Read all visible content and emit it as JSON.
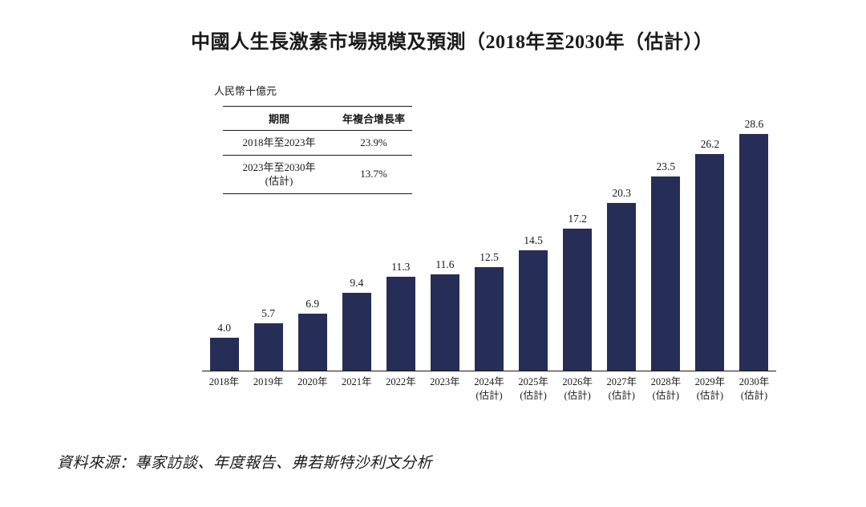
{
  "title": "中國人生長激素市場規模及預測（2018年至2030年（估計））",
  "unit_label": "人民幣十億元",
  "cagr_table": {
    "headers": [
      "期間",
      "年複合增長率"
    ],
    "rows": [
      {
        "period_lines": [
          "2018年至2023年",
          ""
        ],
        "cagr": "23.9%"
      },
      {
        "period_lines": [
          "2023年至2030年",
          "(估計)"
        ],
        "cagr": "13.7%"
      }
    ]
  },
  "source": "資料來源：專家訪談、年度報告、弗若斯特沙利文分析",
  "chart_data": {
    "type": "bar",
    "title": "中國人生長激素市場規模及預測（2018年至2030年（估計））",
    "ylabel": "人民幣十億元",
    "xlabel": "",
    "categories": [
      "2018年",
      "2019年",
      "2020年",
      "2021年",
      "2022年",
      "2023年",
      "2024年\n(估計)",
      "2025年\n(估計)",
      "2026年\n(估計)",
      "2027年\n(估計)",
      "2028年\n(估計)",
      "2029年\n(估計)",
      "2030年\n(估計)"
    ],
    "values": [
      4.0,
      5.7,
      6.9,
      9.4,
      11.3,
      11.6,
      12.5,
      14.5,
      17.2,
      20.3,
      23.5,
      26.2,
      28.6
    ],
    "ylim": [
      0,
      30
    ],
    "grid": false,
    "legend": "none",
    "bar_color": "#262D56",
    "annotations": {
      "cagr_2018_2023": "23.9%",
      "cagr_2023_2030_est": "13.7%"
    }
  }
}
